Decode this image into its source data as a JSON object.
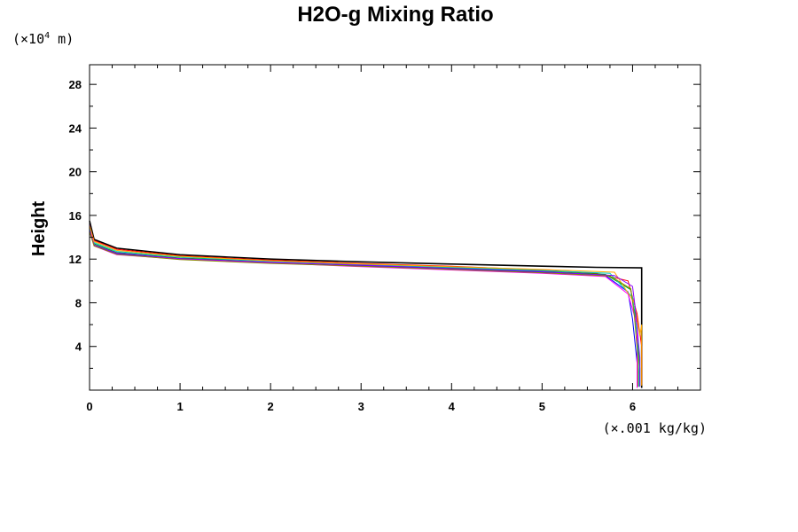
{
  "chart_data": {
    "type": "line",
    "title": "H2O-g Mixing Ratio",
    "ylabel": "Height",
    "y_unit": {
      "prefix": "(×10",
      "exponent": "4",
      "suffix": " m)"
    },
    "x_unit": "(×.001 kg/kg)",
    "xlim": [
      0,
      6.75
    ],
    "ylim": [
      0,
      29.8
    ],
    "x_ticks": [
      0,
      1,
      2,
      3,
      4,
      5,
      6
    ],
    "y_ticks": [
      4,
      8,
      12,
      16,
      20,
      24,
      28
    ],
    "grid": false,
    "series": [
      {
        "color": "#000000",
        "points": [
          [
            0,
            15.5
          ],
          [
            0.05,
            13.8
          ],
          [
            0.3,
            13.0
          ],
          [
            1,
            12.4
          ],
          [
            2,
            12.0
          ],
          [
            3,
            11.75
          ],
          [
            4,
            11.55
          ],
          [
            5,
            11.35
          ],
          [
            5.6,
            11.25
          ],
          [
            6.1,
            11.2
          ],
          [
            6.1,
            8.0
          ],
          [
            6.1,
            4.0
          ],
          [
            6.1,
            0.2
          ]
        ]
      },
      {
        "color": "#ff0000",
        "points": [
          [
            0,
            15.0
          ],
          [
            0.05,
            13.7
          ],
          [
            0.3,
            12.9
          ],
          [
            1,
            12.3
          ],
          [
            2,
            11.9
          ],
          [
            3,
            11.6
          ],
          [
            4,
            11.35
          ],
          [
            5,
            11.0
          ],
          [
            5.6,
            10.7
          ],
          [
            5.95,
            10.0
          ],
          [
            6.05,
            7.0
          ],
          [
            6.1,
            4.0
          ],
          [
            6.1,
            0.5
          ]
        ]
      },
      {
        "color": "#00aa00",
        "points": [
          [
            0,
            14.8
          ],
          [
            0.05,
            13.4
          ],
          [
            0.3,
            12.6
          ],
          [
            1,
            12.1
          ],
          [
            2,
            11.8
          ],
          [
            3,
            11.5
          ],
          [
            4,
            11.2
          ],
          [
            5,
            10.9
          ],
          [
            5.7,
            10.6
          ],
          [
            5.98,
            9.2
          ],
          [
            6.05,
            6.0
          ],
          [
            6.08,
            2.0
          ],
          [
            6.08,
            0.4
          ]
        ]
      },
      {
        "color": "#0000ff",
        "points": [
          [
            0,
            14.7
          ],
          [
            0.05,
            13.3
          ],
          [
            0.3,
            12.5
          ],
          [
            1,
            12.0
          ],
          [
            2,
            11.7
          ],
          [
            3,
            11.4
          ],
          [
            4,
            11.1
          ],
          [
            5,
            10.8
          ],
          [
            5.7,
            10.5
          ],
          [
            5.95,
            9.0
          ],
          [
            6.0,
            6.5
          ],
          [
            6.05,
            2.5
          ],
          [
            6.05,
            0.3
          ]
        ]
      },
      {
        "color": "#00cccc",
        "points": [
          [
            0,
            14.9
          ],
          [
            0.05,
            13.5
          ],
          [
            0.3,
            12.7
          ],
          [
            1,
            12.2
          ],
          [
            2,
            11.8
          ],
          [
            3,
            11.5
          ],
          [
            4,
            11.25
          ],
          [
            5,
            10.95
          ],
          [
            5.75,
            10.7
          ],
          [
            6.0,
            8.5
          ],
          [
            6.05,
            5.0
          ],
          [
            6.07,
            1.5
          ],
          [
            6.07,
            0.3
          ]
        ]
      },
      {
        "color": "#ff00ff",
        "points": [
          [
            0,
            29.8
          ],
          [
            0,
            15.2
          ],
          [
            0.05,
            13.2
          ],
          [
            0.3,
            12.4
          ],
          [
            1,
            12.0
          ],
          [
            2,
            11.65
          ],
          [
            3,
            11.3
          ],
          [
            4,
            11.0
          ],
          [
            5,
            10.7
          ],
          [
            5.7,
            10.4
          ],
          [
            5.95,
            8.8
          ],
          [
            6.05,
            6.0
          ],
          [
            6.05,
            2.0
          ],
          [
            6.05,
            0.2
          ]
        ]
      },
      {
        "color": "#ffaa00",
        "points": [
          [
            0,
            15.1
          ],
          [
            0.05,
            13.6
          ],
          [
            0.3,
            12.8
          ],
          [
            1,
            12.25
          ],
          [
            2,
            11.85
          ],
          [
            3,
            11.55
          ],
          [
            4,
            11.3
          ],
          [
            5,
            11.05
          ],
          [
            5.8,
            10.8
          ],
          [
            6.02,
            8.0
          ],
          [
            6.08,
            5.0
          ],
          [
            6.1,
            6.0
          ],
          [
            6.1,
            0.4
          ]
        ]
      },
      {
        "color": "#8800ff",
        "points": [
          [
            0,
            14.6
          ],
          [
            0.05,
            13.3
          ],
          [
            0.3,
            12.55
          ],
          [
            1,
            12.05
          ],
          [
            2,
            11.7
          ],
          [
            3,
            11.45
          ],
          [
            4,
            11.15
          ],
          [
            5,
            10.85
          ],
          [
            5.8,
            10.5
          ],
          [
            6.0,
            9.5
          ],
          [
            6.03,
            7.5
          ],
          [
            6.08,
            3.0
          ],
          [
            6.08,
            0.3
          ]
        ]
      },
      {
        "color": "#888800",
        "points": [
          [
            0,
            14.5
          ],
          [
            0.05,
            13.2
          ],
          [
            0.3,
            12.45
          ],
          [
            1,
            11.95
          ],
          [
            2,
            11.6
          ],
          [
            3,
            11.35
          ],
          [
            4,
            11.05
          ],
          [
            5,
            10.75
          ],
          [
            5.75,
            10.45
          ],
          [
            5.98,
            9.3
          ],
          [
            6.02,
            6.8
          ],
          [
            6.06,
            2.8
          ],
          [
            6.06,
            0.3
          ]
        ]
      }
    ]
  }
}
